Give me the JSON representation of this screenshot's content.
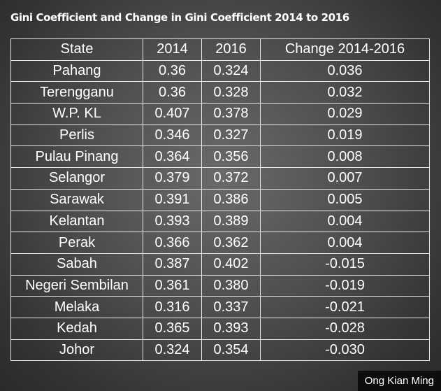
{
  "title": "Gini Coefficient and Change in Gini Coefficient 2014 to 2016",
  "credit": "Ong Kian Ming",
  "chart_data": {
    "type": "table",
    "title": "Gini Coefficient and Change in Gini Coefficient 2014 to 2016",
    "columns": [
      "State",
      "2014",
      "2016",
      "Change 2014-2016"
    ],
    "rows": [
      [
        "Pahang",
        "0.36",
        "0.324",
        "0.036"
      ],
      [
        "Terengganu",
        "0.36",
        "0.328",
        "0.032"
      ],
      [
        "W.P. KL",
        "0.407",
        "0.378",
        "0.029"
      ],
      [
        "Perlis",
        "0.346",
        "0.327",
        "0.019"
      ],
      [
        "Pulau Pinang",
        "0.364",
        "0.356",
        "0.008"
      ],
      [
        "Selangor",
        "0.379",
        "0.372",
        "0.007"
      ],
      [
        "Sarawak",
        "0.391",
        "0.386",
        "0.005"
      ],
      [
        "Kelantan",
        "0.393",
        "0.389",
        "0.004"
      ],
      [
        "Perak",
        "0.366",
        "0.362",
        "0.004"
      ],
      [
        "Sabah",
        "0.387",
        "0.402",
        "-0.015"
      ],
      [
        "Negeri Sembilan",
        "0.361",
        "0.380",
        "-0.019"
      ],
      [
        "Melaka",
        "0.316",
        "0.337",
        "-0.021"
      ],
      [
        "Kedah",
        "0.365",
        "0.393",
        "-0.028"
      ],
      [
        "Johor",
        "0.324",
        "0.354",
        "-0.030"
      ]
    ]
  }
}
